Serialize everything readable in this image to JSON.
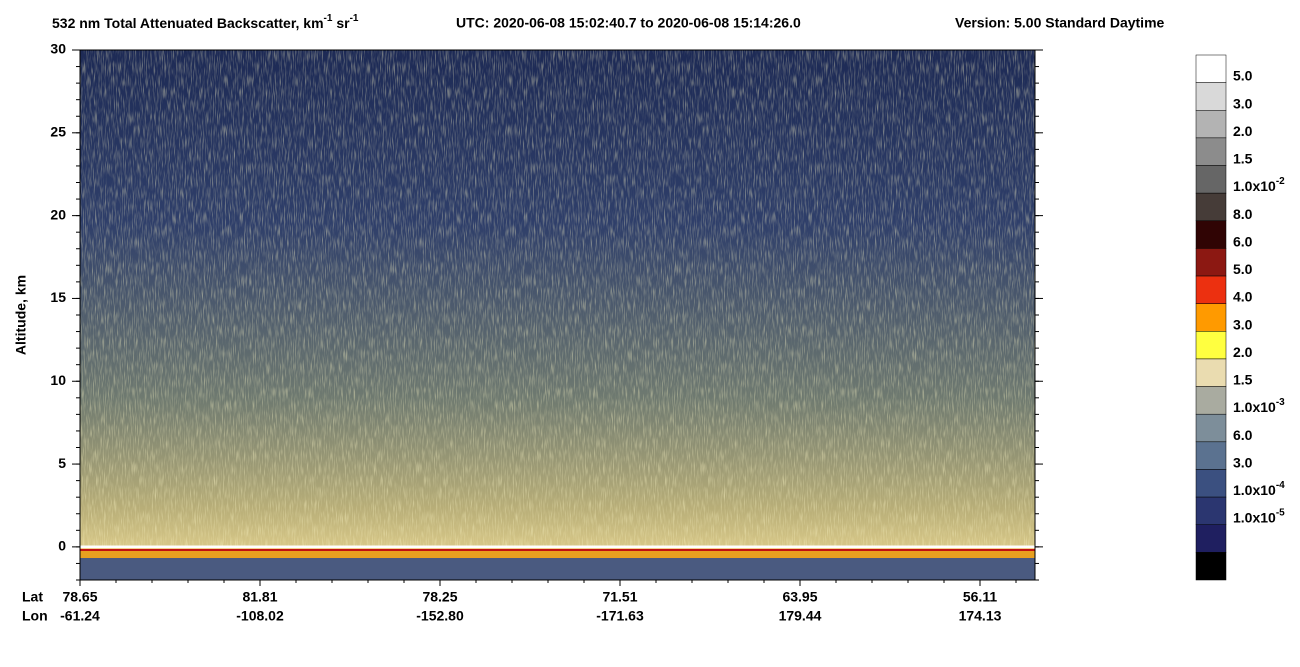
{
  "chart_data": {
    "type": "curtain",
    "title": [
      {
        "text": "532 nm Total Attenuated Backscatter, km"
      },
      {
        "text": "-1",
        "sup": true
      },
      {
        "text": " sr"
      },
      {
        "text": "-1",
        "sup": true
      }
    ],
    "utc": "UTC:  2020-06-08 15:02:40.7  to  2020-06-08 15:14:26.0",
    "version": "Version: 5.00  Standard  Daytime",
    "ylabel": "Altitude, km",
    "ylim": [
      -2,
      30
    ],
    "yticks": [
      0,
      5,
      10,
      15,
      20,
      25,
      30
    ],
    "row_labels": [
      "Lat",
      "Lon"
    ],
    "lat": [
      "78.65",
      "81.81",
      "78.25",
      "71.51",
      "63.95",
      "56.11"
    ],
    "lon": [
      "-61.24",
      "-108.02",
      "-152.80",
      "-171.63",
      "179.44",
      "174.13"
    ],
    "colorbar": {
      "colors": [
        "#ffffff",
        "#d9d9d9",
        "#b3b3b3",
        "#8c8c8c",
        "#666666",
        "#463c38",
        "#300404",
        "#8c1812",
        "#ec3010",
        "#ff9a00",
        "#ffff40",
        "#eadcb0",
        "#a9aba0",
        "#7d8e9a",
        "#5b7290",
        "#3b5080",
        "#2b3670",
        "#1f1f60",
        "#000000"
      ],
      "labels": [
        {
          "text": "5.0"
        },
        {
          "text": "3.0"
        },
        {
          "text": "2.0"
        },
        {
          "text": "1.5"
        },
        {
          "text": "1.0x10",
          "sup": "-2"
        },
        {
          "text": "8.0"
        },
        {
          "text": "6.0"
        },
        {
          "text": "5.0"
        },
        {
          "text": "4.0"
        },
        {
          "text": "3.0"
        },
        {
          "text": "2.0"
        },
        {
          "text": "1.5"
        },
        {
          "text": "1.0x10",
          "sup": "-3"
        },
        {
          "text": "6.0"
        },
        {
          "text": "3.0"
        },
        {
          "text": "1.0x10",
          "sup": "-4"
        },
        {
          "text": "1.0x10",
          "sup": "-5"
        }
      ]
    }
  }
}
